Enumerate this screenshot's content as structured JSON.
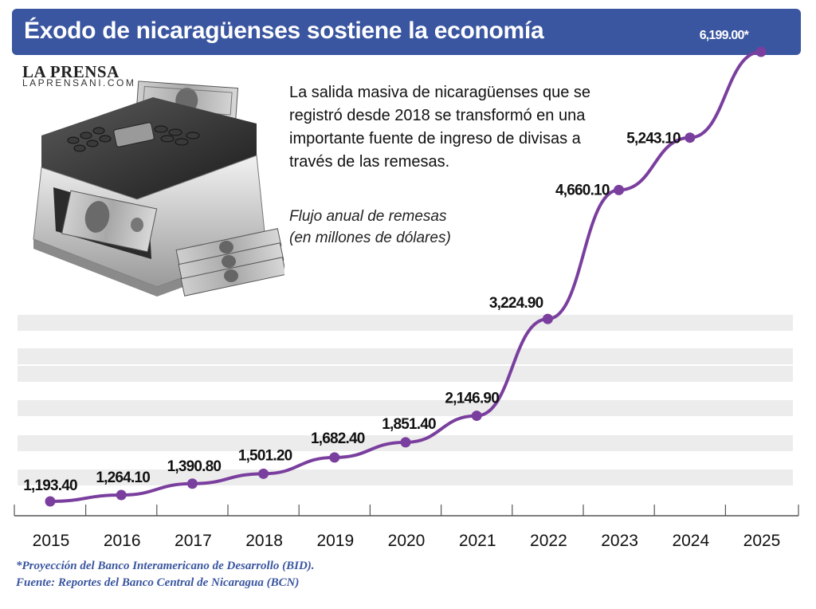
{
  "header": {
    "title": "Éxodo de nicaragüenses sostiene la economía"
  },
  "brand": {
    "name": "LA PRENSA",
    "url": "LAPRENSANI.COM"
  },
  "description": "La salida masiva de nicaragüenses que se registró desde 2018 se transformó en una importante fuente de ingreso de divisas a través de las remesas.",
  "subtitle": {
    "line1": "Flujo anual de remesas",
    "line2": "(en millones de dólares)"
  },
  "footnotes": {
    "projection": "*Proyección del Banco Interamericano de Desarrollo (BID).",
    "source": "Fuente: Reportes del Banco Central de Nicaragua (BCN)"
  },
  "colors": {
    "header": "#3a56a0",
    "line": "#7a3f9e",
    "grid": "#ececec",
    "footnote": "#3a56a0"
  },
  "icons": [
    "bill-counter-icon",
    "money-stack-icon"
  ],
  "chart_data": {
    "type": "line",
    "x": [
      "2015",
      "2016",
      "2017",
      "2018",
      "2019",
      "2020",
      "2021",
      "2022",
      "2023",
      "2024",
      "2025"
    ],
    "series": [
      {
        "values": [
          1193.4,
          1264.1,
          1390.8,
          1501.2,
          1682.4,
          1851.4,
          2146.9,
          3224.9,
          4660.1,
          5243.1,
          6199.0
        ],
        "labels": [
          "1,193.40",
          "1,264.10",
          "1,390.80",
          "1,501.20",
          "1,682.40",
          "1,851.40",
          "2,146.90",
          "3,224.90",
          "4,660.10",
          "5,243.10",
          "6,199.00*"
        ]
      }
    ],
    "xlabel": "",
    "ylabel": "",
    "grid": "horizontal bands",
    "y_axis_labels": false
  }
}
